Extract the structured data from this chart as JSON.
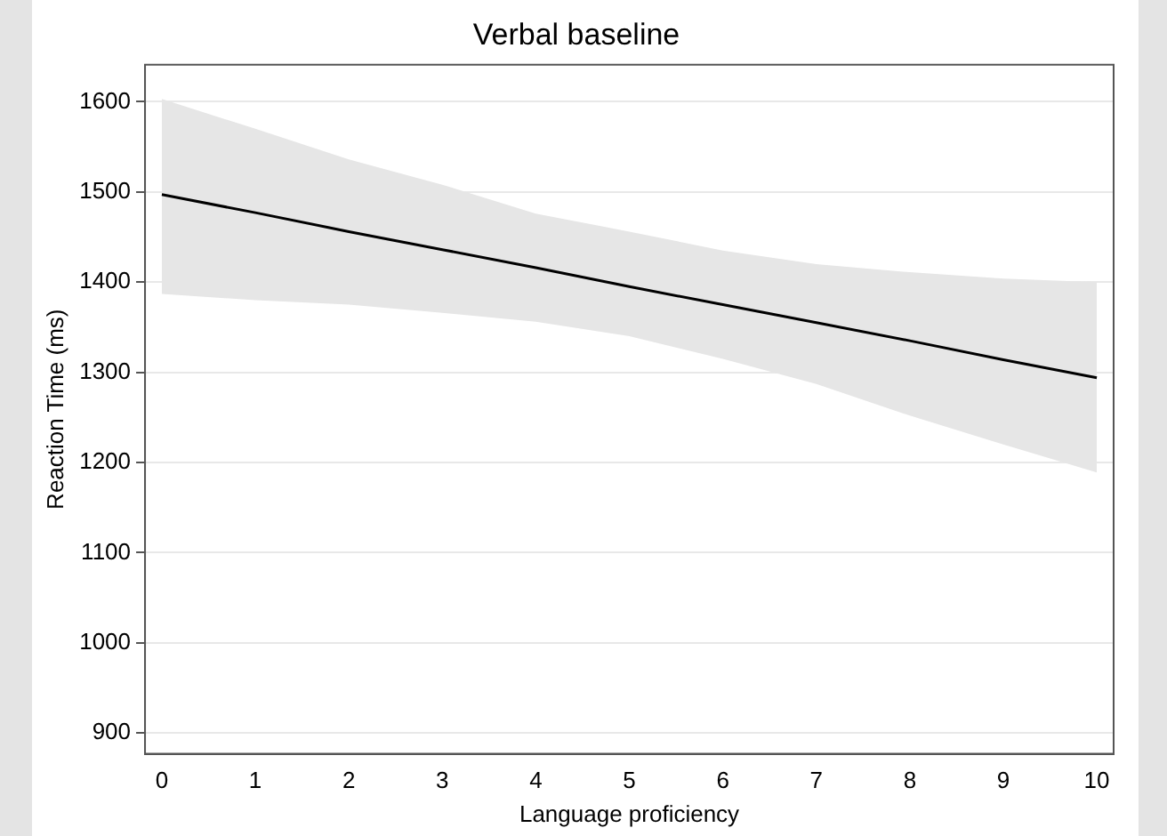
{
  "chart_data": {
    "type": "line",
    "title": "Verbal baseline",
    "xlabel": "Language proficiency",
    "ylabel": "Reaction Time (ms)",
    "x": [
      0,
      1,
      2,
      3,
      4,
      5,
      6,
      7,
      8,
      9,
      10
    ],
    "series": [
      {
        "color": "#000000",
        "values": [
          1497,
          1477,
          1456,
          1436,
          1416,
          1395,
          1375,
          1355,
          1335,
          1314,
          1294
        ],
        "lower": [
          1387,
          1380,
          1375,
          1366,
          1356,
          1340,
          1315,
          1287,
          1252,
          1220,
          1189
        ],
        "upper": [
          1603,
          1570,
          1536,
          1508,
          1476,
          1456,
          1435,
          1420,
          1411,
          1404,
          1400
        ]
      }
    ],
    "xlim": [
      -0.18,
      10.18
    ],
    "ylim": [
      877,
      1641
    ],
    "xticks": [
      0,
      1,
      2,
      3,
      4,
      5,
      6,
      7,
      8,
      9,
      10
    ],
    "yticks": [
      900,
      1000,
      1100,
      1200,
      1300,
      1400,
      1500,
      1600
    ],
    "grid": "y",
    "legend": false,
    "marker": "none",
    "line_style": "solid"
  }
}
